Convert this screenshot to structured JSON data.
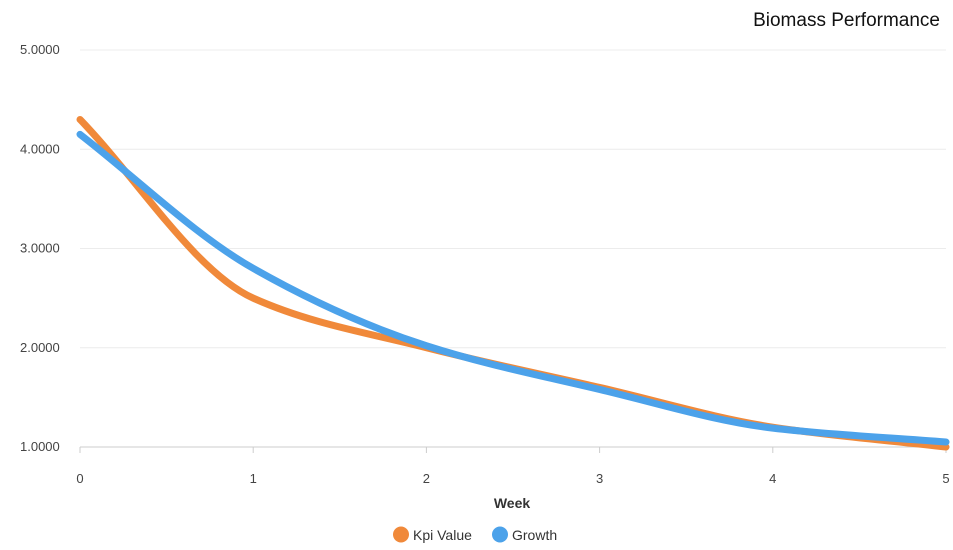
{
  "chart_data": {
    "type": "line",
    "title": "Biomass Performance",
    "xlabel": "Week",
    "ylabel": "",
    "x": [
      0,
      1,
      2,
      3,
      4,
      5
    ],
    "xlim": [
      0,
      5
    ],
    "ylim": [
      1.0,
      5.0
    ],
    "x_ticks": [
      "0",
      "1",
      "2",
      "3",
      "4",
      "5"
    ],
    "y_ticks": [
      "1.0000",
      "2.0000",
      "3.0000",
      "4.0000",
      "5.0000"
    ],
    "y_tick_values": [
      1,
      2,
      3,
      4,
      5
    ],
    "grid": true,
    "legend_position": "bottom",
    "series": [
      {
        "name": "Kpi Value",
        "color": "#f0893a",
        "values": [
          4.3,
          2.5,
          2.0,
          1.6,
          1.2,
          1.0
        ]
      },
      {
        "name": "Growth",
        "color": "#4ca2ea",
        "values": [
          4.15,
          2.8,
          2.02,
          1.58,
          1.19,
          1.05
        ]
      }
    ]
  }
}
